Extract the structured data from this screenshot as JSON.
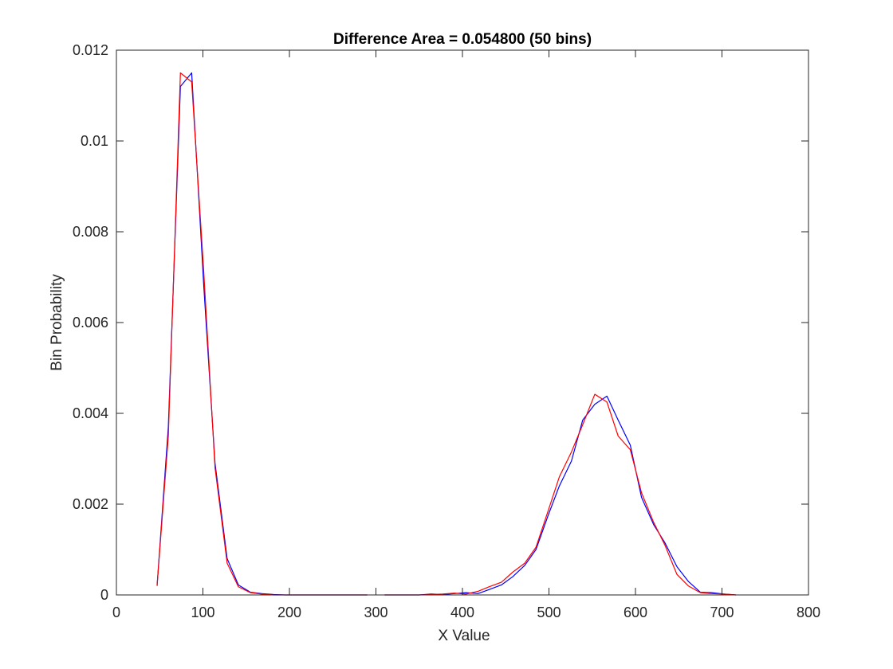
{
  "chart_data": {
    "type": "line",
    "title": "Difference Area = 0.054800 (50 bins)",
    "xlabel": "X Value",
    "ylabel": "Bin Probability",
    "xlim": [
      0,
      800
    ],
    "ylim": [
      0,
      0.012
    ],
    "xticks": [
      0,
      100,
      200,
      300,
      400,
      500,
      600,
      700,
      800
    ],
    "yticks": [
      0,
      0.002,
      0.004,
      0.006,
      0.008,
      0.01,
      0.012
    ],
    "xtick_labels": [
      "0",
      "100",
      "200",
      "300",
      "400",
      "500",
      "600",
      "700",
      "800"
    ],
    "ytick_labels": [
      "0",
      "0.002",
      "0.004",
      "0.006",
      "0.008",
      "0.01",
      "0.012"
    ],
    "grid": false,
    "series": [
      {
        "color": "#0000ff",
        "points": [
          [
            47,
            0.0002
          ],
          [
            60,
            0.0037
          ],
          [
            74,
            0.0112
          ],
          [
            87,
            0.0115
          ],
          [
            101,
            0.0068
          ],
          [
            114,
            0.0029
          ],
          [
            128,
            0.0008
          ],
          [
            141,
            0.00022
          ],
          [
            155,
            6e-05
          ],
          [
            168,
            3e-05
          ],
          [
            182,
            1e-05
          ],
          [
            195,
            0.0
          ],
          [
            209,
            0.0
          ],
          [
            222,
            0.0
          ],
          [
            236,
            0.0
          ],
          [
            249,
            0.0
          ],
          [
            263,
            0.0
          ],
          [
            276,
            0.0
          ],
          [
            290,
            0.0
          ],
          [
            310,
            0.0
          ],
          [
            323,
            0.0
          ],
          [
            337,
            0.0
          ],
          [
            350,
            0.0
          ],
          [
            364,
            2e-05
          ],
          [
            377,
            1e-05
          ],
          [
            391,
            3e-05
          ],
          [
            404,
            5e-05
          ],
          [
            418,
            3e-05
          ],
          [
            431,
            0.00012
          ],
          [
            445,
            0.00022
          ],
          [
            458,
            0.0004
          ],
          [
            472,
            0.00065
          ],
          [
            485,
            0.001
          ],
          [
            499,
            0.00175
          ],
          [
            512,
            0.0024
          ],
          [
            526,
            0.00295
          ],
          [
            539,
            0.00385
          ],
          [
            553,
            0.0042
          ],
          [
            567,
            0.00438
          ],
          [
            580,
            0.00385
          ],
          [
            594,
            0.0033
          ],
          [
            607,
            0.00215
          ],
          [
            621,
            0.00155
          ],
          [
            634,
            0.00115
          ],
          [
            648,
            0.00062
          ],
          [
            661,
            0.0003
          ],
          [
            675,
            6e-05
          ],
          [
            688,
            5e-05
          ],
          [
            702,
            2e-05
          ],
          [
            716,
            0.0
          ]
        ]
      },
      {
        "color": "#ff0000",
        "points": [
          [
            47,
            0.0002
          ],
          [
            60,
            0.0035
          ],
          [
            74,
            0.0115
          ],
          [
            87,
            0.0113
          ],
          [
            101,
            0.0071
          ],
          [
            114,
            0.0028
          ],
          [
            128,
            0.0007
          ],
          [
            141,
            0.00018
          ],
          [
            155,
            5e-05
          ],
          [
            168,
            2e-05
          ],
          [
            182,
            0.0
          ],
          [
            195,
            0.0
          ],
          [
            209,
            0.0
          ],
          [
            222,
            0.0
          ],
          [
            236,
            0.0
          ],
          [
            249,
            0.0
          ],
          [
            263,
            0.0
          ],
          [
            276,
            0.0
          ],
          [
            290,
            0.0
          ],
          [
            310,
            0.0
          ],
          [
            323,
            0.0
          ],
          [
            337,
            0.0
          ],
          [
            350,
            0.0
          ],
          [
            364,
            1e-05
          ],
          [
            377,
            2e-05
          ],
          [
            391,
            4e-05
          ],
          [
            404,
            2e-05
          ],
          [
            418,
            8e-05
          ],
          [
            431,
            0.00018
          ],
          [
            445,
            0.00028
          ],
          [
            458,
            0.0005
          ],
          [
            472,
            0.0007
          ],
          [
            485,
            0.00105
          ],
          [
            499,
            0.00185
          ],
          [
            512,
            0.0026
          ],
          [
            526,
            0.00315
          ],
          [
            539,
            0.00375
          ],
          [
            553,
            0.00442
          ],
          [
            567,
            0.00425
          ],
          [
            580,
            0.0035
          ],
          [
            594,
            0.0032
          ],
          [
            607,
            0.00225
          ],
          [
            621,
            0.0016
          ],
          [
            634,
            0.0011
          ],
          [
            648,
            0.00045
          ],
          [
            661,
            0.0002
          ],
          [
            675,
            5e-05
          ],
          [
            688,
            3e-05
          ],
          [
            702,
            2e-05
          ],
          [
            716,
            0.0
          ]
        ]
      }
    ]
  }
}
